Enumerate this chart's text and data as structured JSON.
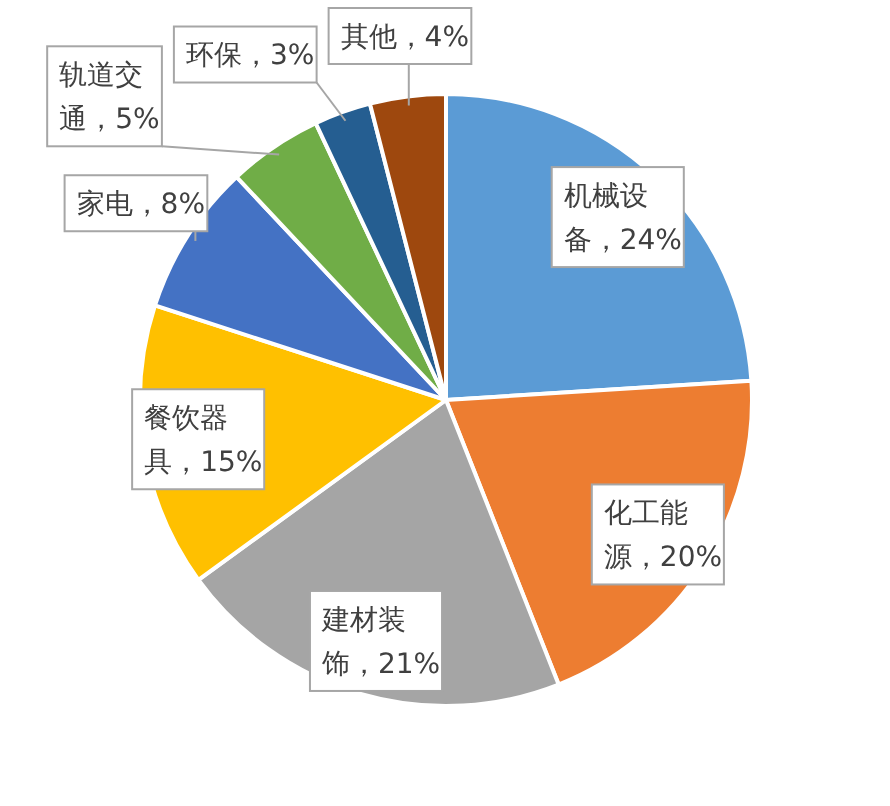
{
  "chart_data": {
    "type": "pie",
    "categories": [
      "机械设备",
      "化工能源",
      "建材装饰",
      "餐饮器具",
      "家电",
      "轨道交通",
      "环保",
      "其他"
    ],
    "values": [
      24,
      20,
      21,
      15,
      8,
      5,
      3,
      4
    ],
    "value_labels": [
      "24%",
      "20%",
      "21%",
      "15%",
      "8%",
      "5%",
      "3%",
      "4%"
    ],
    "colors": [
      "#5b9bd5",
      "#ed7d31",
      "#a5a5a5",
      "#ffc000",
      "#4472c4",
      "#70ad47",
      "#255e91",
      "#9e480e"
    ],
    "legend": false
  }
}
